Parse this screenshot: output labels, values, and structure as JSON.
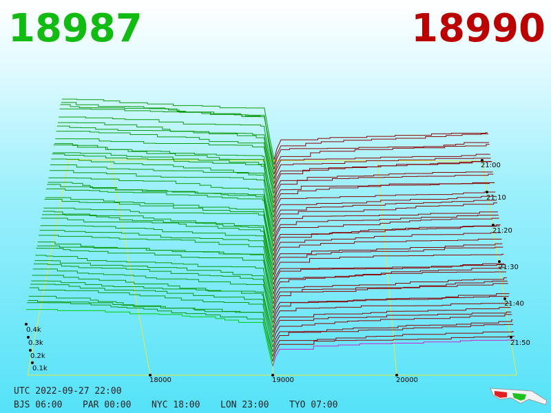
{
  "header": {
    "bid": "18987",
    "ask": "18990"
  },
  "price_axis": [
    "18000",
    "19000",
    "20000"
  ],
  "time_axis": [
    "21:00",
    "21:10",
    "21:20",
    "21:30",
    "21:40",
    "21:50"
  ],
  "depth_axis": [
    "0.4k",
    "0.3k",
    "0.2k",
    "0.1k"
  ],
  "footer": {
    "utc": "UTC 2022-09-27 22:00",
    "cities": [
      "BJS 06:00",
      "PAR 00:00",
      "NYC 18:00",
      "LON 23:00",
      "TYO 07:00"
    ]
  }
}
